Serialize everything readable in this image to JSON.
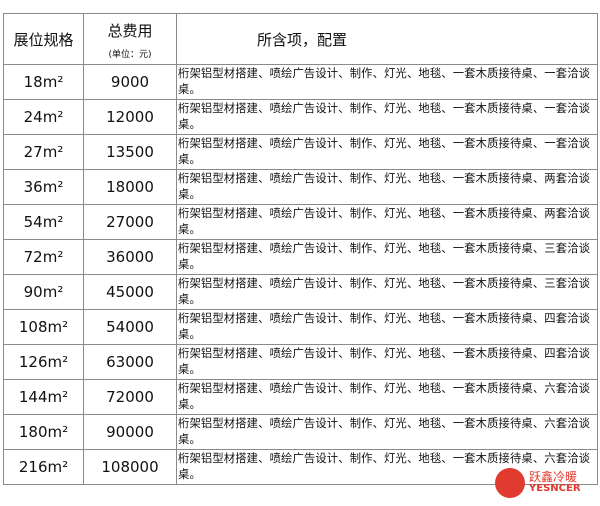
{
  "header": {
    "size": "展位规格",
    "cost": "总费用",
    "unit": "(单位：元)",
    "items": "所含项，配置"
  },
  "rows": [
    {
      "size": "18m²",
      "cost": "9000",
      "items": "桁架铝型材搭建、喷绘广告设计、制作、灯光、地毯、一套木质接待桌、一套洽谈桌。"
    },
    {
      "size": "24m²",
      "cost": "12000",
      "items": "桁架铝型材搭建、喷绘广告设计、制作、灯光、地毯、一套木质接待桌、一套洽谈桌。"
    },
    {
      "size": "27m²",
      "cost": "13500",
      "items": "桁架铝型材搭建、喷绘广告设计、制作、灯光、地毯、一套木质接待桌、一套洽谈桌。"
    },
    {
      "size": "36m²",
      "cost": "18000",
      "items": "桁架铝型材搭建、喷绘广告设计、制作、灯光、地毯、一套木质接待桌、两套洽谈桌。"
    },
    {
      "size": "54m²",
      "cost": "27000",
      "items": "桁架铝型材搭建、喷绘广告设计、制作、灯光、地毯、一套木质接待桌、两套洽谈桌。"
    },
    {
      "size": "72m²",
      "cost": "36000",
      "items": "桁架铝型材搭建、喷绘广告设计、制作、灯光、地毯、一套木质接待桌、三套洽谈桌。"
    },
    {
      "size": "90m²",
      "cost": "45000",
      "items": "桁架铝型材搭建、喷绘广告设计、制作、灯光、地毯、一套木质接待桌、三套洽谈桌。"
    },
    {
      "size": "108m²",
      "cost": "54000",
      "items": "桁架铝型材搭建、喷绘广告设计、制作、灯光、地毯、一套木质接待桌、四套洽谈桌。"
    },
    {
      "size": "126m²",
      "cost": "63000",
      "items": "桁架铝型材搭建、喷绘广告设计、制作、灯光、地毯、一套木质接待桌、四套洽谈桌。"
    },
    {
      "size": "144m²",
      "cost": "72000",
      "items": "桁架铝型材搭建、喷绘广告设计、制作、灯光、地毯、一套木质接待桌、六套洽谈桌。"
    },
    {
      "size": "180m²",
      "cost": "90000",
      "items": "桁架铝型材搭建、喷绘广告设计、制作、灯光、地毯、一套木质接待桌、六套洽谈桌。"
    },
    {
      "size": "216m²",
      "cost": "108000",
      "items": "桁架铝型材搭建、喷绘广告设计、制作、灯光、地毯、一套木质接待桌、六套洽谈桌。"
    }
  ],
  "watermark": {
    "cn": "跃鑫冷暖",
    "en": "YESNCER",
    "color": "#e03b2e"
  }
}
